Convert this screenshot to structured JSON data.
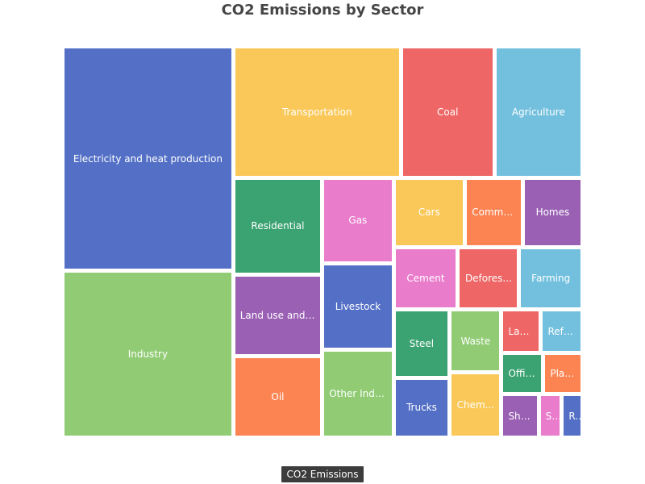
{
  "chart_data": {
    "type": "treemap",
    "title": "CO2 Emissions by Sector",
    "series_name": "CO2 Emissions",
    "palette": [
      "#5470c6",
      "#91cc75",
      "#fac858",
      "#ee6666",
      "#73c0de",
      "#3ba272",
      "#fc8452",
      "#9a60b4",
      "#ea7ccc"
    ],
    "items": [
      {
        "name": "Electricity and heat production",
        "label": "Electricity and heat production",
        "value": 196
      },
      {
        "name": "Industry",
        "label": "Industry",
        "value": 145
      },
      {
        "name": "Transportation",
        "label": "Transportation",
        "value": 113
      },
      {
        "name": "Coal",
        "label": "Coal",
        "value": 63
      },
      {
        "name": "Agriculture",
        "label": "Agriculture",
        "value": 58
      },
      {
        "name": "Residential",
        "label": "Residential",
        "value": 45
      },
      {
        "name": "Oil",
        "label": "Oil",
        "value": 37
      },
      {
        "name": "Land use and Forestry",
        "label": "Land use and Fore...",
        "value": 38
      },
      {
        "name": "Gas",
        "label": "Gas",
        "value": 32
      },
      {
        "name": "Livestock",
        "label": "Livestock",
        "value": 32
      },
      {
        "name": "Other Industry",
        "label": "Other Industry",
        "value": 32
      },
      {
        "name": "Cars",
        "label": "Cars",
        "value": 26
      },
      {
        "name": "Deforestation",
        "label": "Defores...",
        "value": 20
      },
      {
        "name": "Farming",
        "label": "Farming",
        "value": 20
      },
      {
        "name": "Steel",
        "label": "Steel",
        "value": 20
      },
      {
        "name": "Commercial",
        "label": "Commercial",
        "value": 21
      },
      {
        "name": "Homes",
        "label": "Homes",
        "value": 21
      },
      {
        "name": "Cement",
        "label": "Cement",
        "value": 21
      },
      {
        "name": "Trucks",
        "label": "Trucks",
        "value": 17
      },
      {
        "name": "Waste",
        "label": "Waste",
        "value": 17
      },
      {
        "name": "Chemicals",
        "label": "Chem...",
        "value": 17
      },
      {
        "name": "Landfills",
        "label": "Landfills",
        "value": 9
      },
      {
        "name": "Reforestation",
        "label": "Reforestation",
        "value": 9
      },
      {
        "name": "Offices",
        "label": "Offices",
        "value": 9
      },
      {
        "name": "Plantations",
        "label": "Plan...",
        "value": 8
      },
      {
        "name": "Ships",
        "label": "Ships",
        "value": 8
      },
      {
        "name": "Schools",
        "label": "Schools",
        "value": 5
      },
      {
        "name": "Retail",
        "label": "Re...",
        "value": 4
      }
    ]
  }
}
